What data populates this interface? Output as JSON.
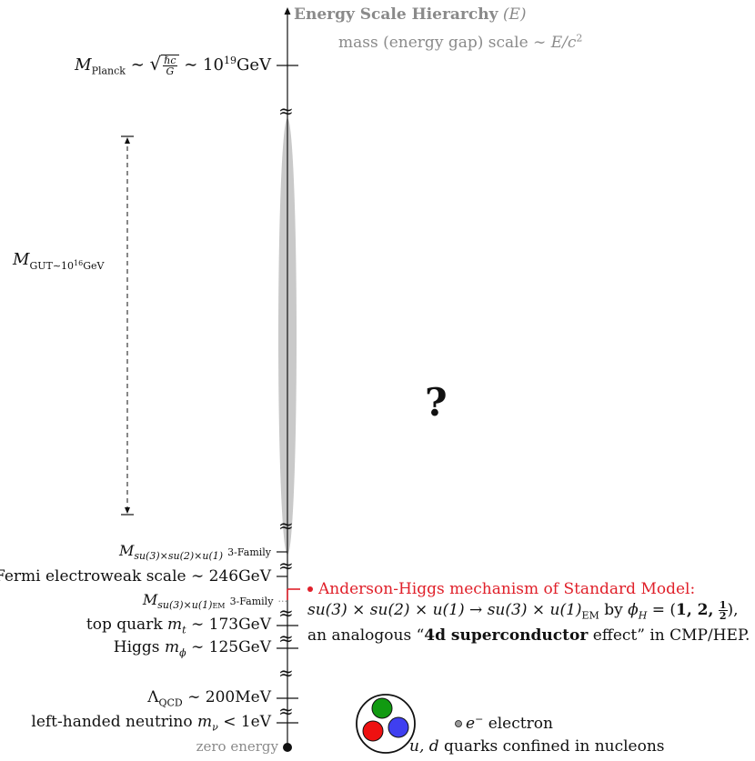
{
  "axis": {
    "title": "Energy Scale Hierarchy",
    "title_var": "(E)",
    "subtitle_prefix": "mass (energy gap) scale ∼",
    "subtitle_formula": "E/c",
    "subtitle_exp": "2"
  },
  "left_labels": {
    "planck_m": "M",
    "planck_sub": "Planck",
    "planck_sim": "∼",
    "planck_num": "ℏc",
    "planck_den": "G",
    "planck_tail": "∼ 10",
    "planck_exp": "19",
    "planck_unit": "GeV",
    "gut_m": "M",
    "gut_sub_a": "GUT∼10",
    "gut_sub_exp": "16",
    "gut_sub_b": "GeV",
    "family_m": "M",
    "family_sub": "su(3)×su(2)×u(1)",
    "family_tail": "3-Family",
    "fermi": "Fermi electroweak scale ∼ 246GeV",
    "family_em_m": "M",
    "family_em_sub_a": "su(3)×u(1)",
    "family_em_sub_b": "EM",
    "family_em_tail": "3-Family",
    "family_em_dots": "···",
    "top_a": "top quark",
    "top_var": "m",
    "top_sub": "t",
    "top_b": "∼ 173GeV",
    "higgs_a": "Higgs",
    "higgs_var": "m",
    "higgs_sub": "ϕ",
    "higgs_b": "∼ 125GeV",
    "qcd_a": "Λ",
    "qcd_sub": "QCD",
    "qcd_b": "∼ 200MeV",
    "nu_a": "left-handed neutrino",
    "nu_var": "m",
    "nu_sub": "ν",
    "nu_b": "< 1eV",
    "zero": "zero energy"
  },
  "question_mark": "?",
  "higgs_box": {
    "line1": "Anderson-Higgs mechanism of Standard Model:",
    "line2a": "su(3) × su(2) × u(1) → su(3) × u(1)",
    "line2_sub": "EM",
    "line2b": "by",
    "line2_phi": "ϕ",
    "line2_phi_sub": "H",
    "line2c": "= (",
    "line2_bold": "1, 2,",
    "line2_num": "1",
    "line2_den": "2",
    "line2d": "),",
    "line3a": "an analogous “",
    "line3_bold": "4d superconductor",
    "line3b": " effect” in CMP/HEP."
  },
  "bottom": {
    "electron_var": "e",
    "electron_exp": "−",
    "electron_text": "electron",
    "quarks_var": "u, d",
    "quarks_text": "quarks confined in nucleons"
  },
  "colors": {
    "axis": "#111111",
    "gray_text": "#8a8a8a",
    "ellipse": "#c9c9c9",
    "higgs_red": "#e0202a",
    "quark_green": "#119a11",
    "quark_red": "#ee1111",
    "quark_blue": "#3f3ff0",
    "electron_gray": "#9a9a9a"
  },
  "break_symbol": "≈"
}
